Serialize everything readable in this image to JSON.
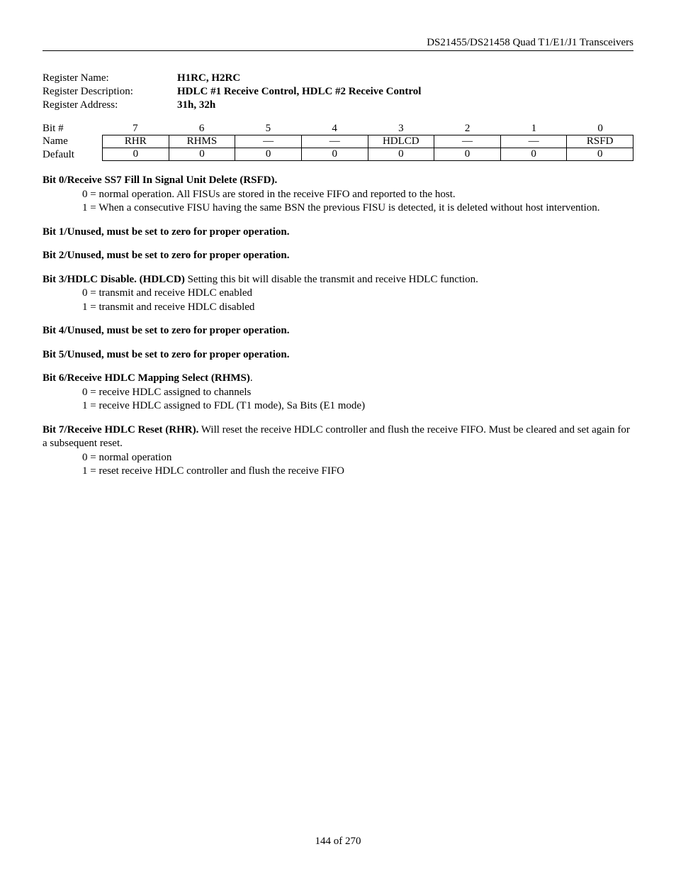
{
  "header": {
    "title": "DS21455/DS21458 Quad T1/E1/J1 Transceivers"
  },
  "register": {
    "name_label": "Register Name:",
    "name_value": "H1RC, H2RC",
    "desc_label": "Register Description:",
    "desc_value": "HDLC #1 Receive Control, HDLC #2 Receive Control",
    "addr_label": "Register Address:",
    "addr_value": "31h, 32h"
  },
  "table": {
    "row_labels": {
      "bitnum": "Bit #",
      "name": "Name",
      "default": "Default"
    },
    "bits": [
      "7",
      "6",
      "5",
      "4",
      "3",
      "2",
      "1",
      "0"
    ],
    "names": [
      "RHR",
      "RHMS",
      "—",
      "—",
      "HDLCD",
      "—",
      "—",
      "RSFD"
    ],
    "defaults": [
      "0",
      "0",
      "0",
      "0",
      "0",
      "0",
      "0",
      "0"
    ]
  },
  "sections": [
    {
      "title": "Bit 0/Receive SS7 Fill In Signal Unit Delete (RSFD).",
      "tail": "",
      "lines": [
        "0 = normal operation.  All FISUs are stored in the receive FIFO and reported to the host.",
        "1 = When a consecutive FISU having the same BSN the previous FISU is detected, it is deleted without host intervention."
      ]
    },
    {
      "title": "Bit 1/Unused, must be set to zero for proper operation.",
      "tail": "",
      "lines": []
    },
    {
      "title": "Bit 2/Unused, must be set to zero for proper operation.",
      "tail": "",
      "lines": []
    },
    {
      "title": "Bit 3/HDLC Disable. (HDLCD)",
      "tail": "  Setting this bit will disable the transmit and receive HDLC function.",
      "lines": [
        "0 = transmit and receive HDLC enabled",
        "1 = transmit and receive HDLC disabled"
      ]
    },
    {
      "title": "Bit 4/Unused, must be set to zero for proper operation.",
      "tail": "",
      "lines": []
    },
    {
      "title": "Bit 5/Unused, must be set to zero for proper operation.",
      "tail": "",
      "lines": []
    },
    {
      "title": "Bit 6/Receive HDLC Mapping Select (RHMS)",
      "tail": ".",
      "lines": [
        "0 = receive HDLC assigned to channels",
        "1 = receive HDLC assigned to FDL (T1 mode), Sa Bits (E1 mode)"
      ]
    },
    {
      "title": "Bit 7/Receive HDLC Reset (RHR).",
      "tail": " Will reset the receive HDLC controller and flush the receive FIFO. Must be cleared and set again for a subsequent reset.",
      "lines": [
        "0 = normal operation",
        "1 = reset receive HDLC controller and flush the receive FIFO"
      ],
      "nowrap_tail": false
    }
  ],
  "footer": {
    "page": "144 of 270"
  }
}
